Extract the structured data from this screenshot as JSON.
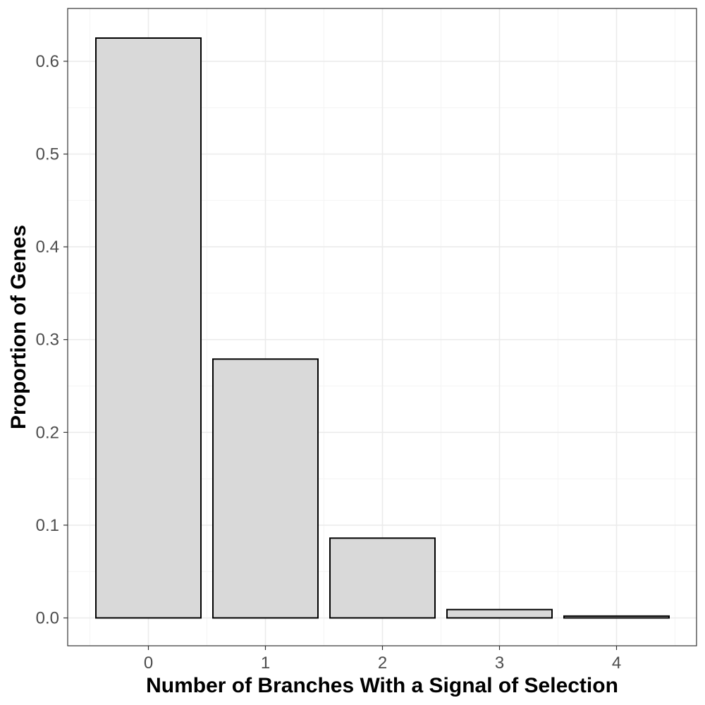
{
  "chart_data": {
    "type": "bar",
    "title": "",
    "xlabel": "Number of Branches With a Signal of Selection",
    "ylabel": "Proportion of Genes",
    "categories": [
      "0",
      "1",
      "2",
      "3",
      "4"
    ],
    "values": [
      0.625,
      0.279,
      0.086,
      0.009,
      0.002
    ],
    "ylim": [
      -0.03,
      0.655
    ],
    "yticks": [
      0.0,
      0.1,
      0.2,
      0.3,
      0.4,
      0.5,
      0.6
    ],
    "ytick_labels": [
      "0.0",
      "0.1",
      "0.2",
      "0.3",
      "0.4",
      "0.5",
      "0.6"
    ],
    "grid": true,
    "legend": "none",
    "colors": {
      "bar_fill": "#d9d9d9",
      "bar_stroke": "#000000",
      "grid_major": "#ebebeb",
      "grid_minor": "#f4f4f4",
      "panel_border": "#333333"
    }
  }
}
